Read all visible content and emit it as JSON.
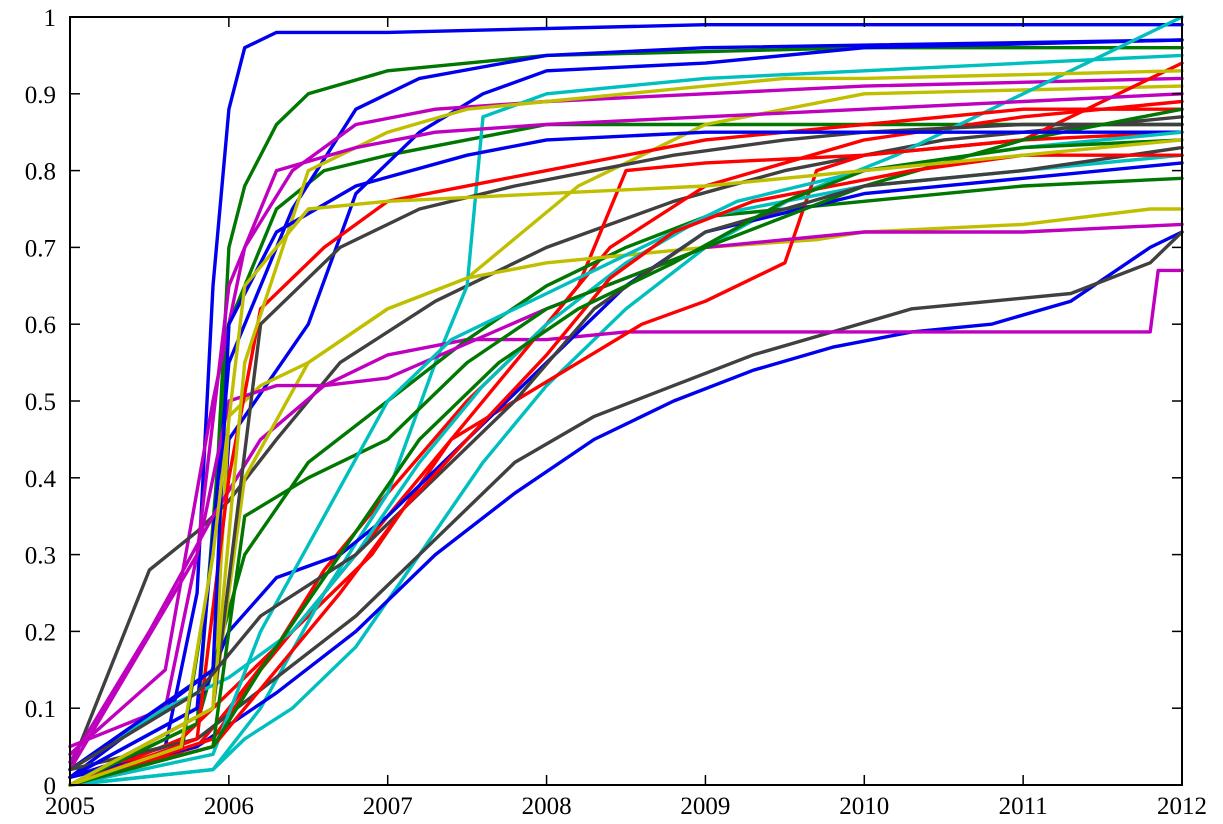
{
  "chart_data": {
    "type": "line",
    "title": "",
    "xlabel": "",
    "ylabel": "",
    "xlim": [
      2005,
      2012
    ],
    "ylim": [
      0,
      1
    ],
    "x_ticks": [
      2005,
      2006,
      2007,
      2008,
      2009,
      2010,
      2011,
      2012
    ],
    "y_ticks": [
      0,
      0.1,
      0.2,
      0.3,
      0.4,
      0.5,
      0.6,
      0.7,
      0.8,
      0.9,
      1
    ],
    "x_tick_labels": [
      "2005",
      "2006",
      "2007",
      "2008",
      "2009",
      "2010",
      "2011",
      "2012"
    ],
    "y_tick_labels": [
      "0",
      "0.1",
      "0.2",
      "0.3",
      "0.4",
      "0.5",
      "0.6",
      "0.7",
      "0.8",
      "0.9",
      "1"
    ],
    "grid": false,
    "legend": "none",
    "colors": {
      "blue": "#0000ee",
      "green": "#007700",
      "red": "#ff0000",
      "cyan": "#00bfbf",
      "magenta": "#bf00bf",
      "olive": "#bfbf00",
      "gray": "#404040"
    },
    "series": [
      {
        "color": "#0000ee",
        "x": [
          2005.0,
          2005.6,
          2005.8,
          2005.9,
          2006.0,
          2006.1,
          2006.3,
          2007.0,
          2009.0,
          2012.0
        ],
        "y": [
          0.01,
          0.05,
          0.25,
          0.65,
          0.88,
          0.96,
          0.98,
          0.98,
          0.99,
          0.99
        ]
      },
      {
        "color": "#007700",
        "x": [
          2005.0,
          2005.7,
          2005.9,
          2006.0,
          2006.1,
          2006.3,
          2006.5,
          2007.0,
          2008.0,
          2010.0,
          2012.0
        ],
        "y": [
          0.0,
          0.04,
          0.3,
          0.7,
          0.78,
          0.86,
          0.9,
          0.93,
          0.95,
          0.96,
          0.96
        ]
      },
      {
        "color": "#007700",
        "x": [
          2005.0,
          2005.8,
          2006.0,
          2006.3,
          2006.6,
          2007.0,
          2008.0,
          2012.0
        ],
        "y": [
          0.0,
          0.08,
          0.6,
          0.75,
          0.8,
          0.82,
          0.86,
          0.86
        ]
      },
      {
        "color": "#0000ee",
        "x": [
          2005.0,
          2005.8,
          2006.0,
          2006.4,
          2006.8,
          2007.2,
          2008.0,
          2009.0,
          2012.0
        ],
        "y": [
          0.01,
          0.1,
          0.55,
          0.75,
          0.88,
          0.92,
          0.95,
          0.96,
          0.97
        ]
      },
      {
        "color": "#0000ee",
        "x": [
          2005.0,
          2005.9,
          2006.0,
          2006.5,
          2006.8,
          2007.2,
          2007.6,
          2008.0,
          2009.0,
          2010.0,
          2012.0
        ],
        "y": [
          0.01,
          0.15,
          0.45,
          0.6,
          0.77,
          0.85,
          0.9,
          0.93,
          0.94,
          0.96,
          0.97
        ]
      },
      {
        "color": "#bf00bf",
        "x": [
          2005.0,
          2005.6,
          2005.9,
          2006.1,
          2006.4,
          2006.8,
          2007.3,
          2008.0,
          2009.0,
          2010.0,
          2012.0
        ],
        "y": [
          0.04,
          0.15,
          0.5,
          0.7,
          0.8,
          0.86,
          0.88,
          0.89,
          0.9,
          0.91,
          0.92
        ]
      },
      {
        "color": "#bfbf00",
        "x": [
          2005.0,
          2005.9,
          2006.0,
          2006.2,
          2006.5,
          2007.0,
          2007.5,
          2008.2,
          2009.0,
          2010.0,
          2012.0
        ],
        "y": [
          0.0,
          0.1,
          0.48,
          0.52,
          0.55,
          0.62,
          0.66,
          0.78,
          0.86,
          0.9,
          0.91
        ]
      },
      {
        "color": "#404040",
        "x": [
          2005.0,
          2005.5,
          2005.8,
          2006.0,
          2006.3,
          2006.7,
          2007.3,
          2008.0,
          2008.8,
          2009.5,
          2010.5,
          2011.5,
          2012.0
        ],
        "y": [
          0.02,
          0.28,
          0.33,
          0.37,
          0.45,
          0.55,
          0.63,
          0.7,
          0.76,
          0.8,
          0.84,
          0.86,
          0.87
        ]
      },
      {
        "color": "#ff0000",
        "x": [
          2005.0,
          2005.8,
          2006.0,
          2006.3,
          2006.6,
          2007.0,
          2007.5,
          2008.0,
          2008.4,
          2009.0,
          2010.0,
          2011.0,
          2012.0
        ],
        "y": [
          0.0,
          0.05,
          0.1,
          0.18,
          0.28,
          0.38,
          0.5,
          0.6,
          0.7,
          0.78,
          0.84,
          0.87,
          0.89
        ]
      },
      {
        "color": "#ff0000",
        "x": [
          2005.0,
          2005.7,
          2006.0,
          2006.4,
          2006.9,
          2007.4,
          2007.8,
          2008.2,
          2008.5,
          2009.0,
          2010.0,
          2011.0,
          2012.0
        ],
        "y": [
          0.0,
          0.06,
          0.12,
          0.2,
          0.3,
          0.45,
          0.55,
          0.65,
          0.8,
          0.81,
          0.82,
          0.84,
          0.94
        ]
      },
      {
        "color": "#00bfbf",
        "x": [
          2005.0,
          2005.9,
          2006.1,
          2006.4,
          2006.8,
          2007.2,
          2007.6,
          2008.0,
          2008.5,
          2009.0,
          2009.6,
          2010.2,
          2011.0,
          2012.0
        ],
        "y": [
          0.0,
          0.02,
          0.06,
          0.1,
          0.18,
          0.3,
          0.42,
          0.52,
          0.62,
          0.7,
          0.77,
          0.82,
          0.9,
          1.0
        ]
      },
      {
        "color": "#00bfbf",
        "x": [
          2005.0,
          2005.9,
          2006.2,
          2006.6,
          2007.0,
          2007.3,
          2007.5,
          2007.6,
          2008.0,
          2009.0,
          2010.0,
          2012.0
        ],
        "y": [
          0.0,
          0.02,
          0.1,
          0.25,
          0.38,
          0.55,
          0.65,
          0.87,
          0.9,
          0.92,
          0.93,
          0.95
        ]
      },
      {
        "color": "#0000ee",
        "x": [
          2005.0,
          2005.8,
          2006.3,
          2006.8,
          2007.3,
          2007.8,
          2008.3,
          2008.8,
          2009.3,
          2009.8,
          2010.3,
          2010.8,
          2011.3,
          2011.8,
          2012.0
        ],
        "y": [
          0.01,
          0.05,
          0.12,
          0.2,
          0.3,
          0.38,
          0.45,
          0.5,
          0.54,
          0.57,
          0.59,
          0.6,
          0.63,
          0.7,
          0.72
        ]
      },
      {
        "color": "#404040",
        "x": [
          2005.0,
          2005.8,
          2006.3,
          2006.8,
          2007.3,
          2007.8,
          2008.3,
          2008.8,
          2009.3,
          2009.8,
          2010.3,
          2010.8,
          2011.3,
          2011.8,
          2012.0
        ],
        "y": [
          0.02,
          0.06,
          0.14,
          0.22,
          0.32,
          0.42,
          0.48,
          0.52,
          0.56,
          0.59,
          0.62,
          0.63,
          0.64,
          0.68,
          0.72
        ]
      },
      {
        "color": "#bf00bf",
        "x": [
          2005.0,
          2005.5,
          2005.9,
          2006.2,
          2006.6,
          2007.0,
          2007.5,
          2008.0,
          2008.5,
          2009.0,
          2011.0,
          2011.8,
          2011.85,
          2012.0
        ],
        "y": [
          0.03,
          0.2,
          0.35,
          0.45,
          0.52,
          0.56,
          0.58,
          0.58,
          0.59,
          0.59,
          0.59,
          0.59,
          0.67,
          0.67
        ]
      },
      {
        "color": "#007700",
        "x": [
          2005.0,
          2005.8,
          2006.1,
          2006.5,
          2007.0,
          2007.5,
          2008.0,
          2008.5,
          2009.0,
          2010.0,
          2011.0,
          2012.0
        ],
        "y": [
          0.0,
          0.08,
          0.3,
          0.42,
          0.5,
          0.58,
          0.65,
          0.7,
          0.74,
          0.76,
          0.78,
          0.79
        ]
      },
      {
        "color": "#bfbf00",
        "x": [
          2005.0,
          2005.9,
          2006.1,
          2006.5,
          2007.0,
          2007.5,
          2008.0,
          2009.0,
          2009.7,
          2010.0,
          2011.0,
          2011.8,
          2012.0
        ],
        "y": [
          0.0,
          0.1,
          0.4,
          0.55,
          0.62,
          0.66,
          0.68,
          0.7,
          0.71,
          0.72,
          0.73,
          0.75,
          0.75
        ]
      },
      {
        "color": "#ff0000",
        "x": [
          2005.0,
          2005.9,
          2006.2,
          2006.6,
          2007.0,
          2007.4,
          2007.8,
          2008.2,
          2008.6,
          2009.0,
          2009.5,
          2009.7,
          2010.0,
          2011.0,
          2012.0
        ],
        "y": [
          0.0,
          0.06,
          0.15,
          0.25,
          0.35,
          0.45,
          0.5,
          0.55,
          0.6,
          0.63,
          0.68,
          0.8,
          0.82,
          0.84,
          0.85
        ]
      },
      {
        "color": "#bf00bf",
        "x": [
          2005.0,
          2005.6,
          2005.9,
          2006.0,
          2006.3,
          2006.6,
          2007.0,
          2008.0,
          2009.0,
          2010.0,
          2011.0,
          2012.0
        ],
        "y": [
          0.05,
          0.1,
          0.4,
          0.5,
          0.52,
          0.52,
          0.53,
          0.62,
          0.7,
          0.72,
          0.72,
          0.73
        ]
      },
      {
        "color": "#0000ee",
        "x": [
          2005.0,
          2005.8,
          2006.0,
          2006.3,
          2006.7,
          2007.0,
          2007.5,
          2008.0,
          2008.5,
          2009.0,
          2010.0,
          2011.0,
          2012.0
        ],
        "y": [
          0.01,
          0.1,
          0.2,
          0.27,
          0.3,
          0.35,
          0.45,
          0.55,
          0.65,
          0.72,
          0.77,
          0.79,
          0.81
        ]
      },
      {
        "color": "#00bfbf",
        "x": [
          2005.0,
          2005.6,
          2006.0,
          2006.4,
          2006.8,
          2007.2,
          2007.6,
          2008.0,
          2008.5,
          2009.0,
          2010.0,
          2011.0,
          2012.0
        ],
        "y": [
          0.02,
          0.1,
          0.14,
          0.2,
          0.3,
          0.42,
          0.52,
          0.6,
          0.68,
          0.74,
          0.78,
          0.8,
          0.82
        ]
      },
      {
        "color": "#404040",
        "x": [
          2005.0,
          2005.9,
          2006.2,
          2006.7,
          2007.2,
          2007.8,
          2008.3,
          2008.8,
          2009.5,
          2010.0,
          2011.0,
          2012.0
        ],
        "y": [
          0.0,
          0.1,
          0.6,
          0.7,
          0.75,
          0.78,
          0.8,
          0.82,
          0.84,
          0.85,
          0.86,
          0.86
        ]
      },
      {
        "color": "#ff0000",
        "x": [
          2005.0,
          2005.8,
          2006.0,
          2006.2,
          2006.6,
          2007.0,
          2008.0,
          2009.0,
          2010.0,
          2011.0,
          2012.0
        ],
        "y": [
          0.0,
          0.06,
          0.4,
          0.62,
          0.7,
          0.76,
          0.8,
          0.84,
          0.86,
          0.88,
          0.88
        ]
      },
      {
        "color": "#007700",
        "x": [
          2005.0,
          2005.9,
          2006.1,
          2006.5,
          2007.0,
          2007.5,
          2008.0,
          2009.0,
          2010.0,
          2011.0,
          2012.0
        ],
        "y": [
          0.0,
          0.05,
          0.35,
          0.4,
          0.45,
          0.55,
          0.62,
          0.7,
          0.78,
          0.84,
          0.88
        ]
      },
      {
        "color": "#bfbf00",
        "x": [
          2005.0,
          2005.9,
          2006.1,
          2006.5,
          2007.0,
          2007.5,
          2008.0,
          2008.5,
          2009.0,
          2009.5,
          2010.0,
          2012.0
        ],
        "y": [
          0.0,
          0.1,
          0.55,
          0.8,
          0.85,
          0.88,
          0.89,
          0.9,
          0.91,
          0.92,
          0.92,
          0.93
        ]
      },
      {
        "color": "#0000ee",
        "x": [
          2005.0,
          2005.9,
          2006.0,
          2006.3,
          2006.8,
          2007.5,
          2008.0,
          2009.0,
          2012.0
        ],
        "y": [
          0.02,
          0.15,
          0.6,
          0.72,
          0.78,
          0.82,
          0.84,
          0.85,
          0.85
        ]
      },
      {
        "color": "#bf00bf",
        "x": [
          2005.0,
          2005.8,
          2006.0,
          2006.3,
          2006.8,
          2007.3,
          2008.0,
          2009.0,
          2010.0,
          2011.0,
          2012.0
        ],
        "y": [
          0.02,
          0.3,
          0.65,
          0.8,
          0.83,
          0.85,
          0.86,
          0.87,
          0.88,
          0.89,
          0.9
        ]
      },
      {
        "color": "#00bfbf",
        "x": [
          2005.0,
          2005.9,
          2006.2,
          2006.6,
          2007.0,
          2007.4,
          2008.0,
          2008.6,
          2009.2,
          2010.0,
          2011.0,
          2012.0
        ],
        "y": [
          0.0,
          0.04,
          0.2,
          0.35,
          0.5,
          0.58,
          0.64,
          0.7,
          0.76,
          0.8,
          0.83,
          0.85
        ]
      },
      {
        "color": "#404040",
        "x": [
          2005.0,
          2005.8,
          2006.2,
          2006.8,
          2007.3,
          2007.8,
          2008.3,
          2009.0,
          2010.0,
          2011.0,
          2012.0
        ],
        "y": [
          0.02,
          0.12,
          0.22,
          0.3,
          0.4,
          0.5,
          0.62,
          0.72,
          0.78,
          0.8,
          0.83
        ]
      },
      {
        "color": "#ff0000",
        "x": [
          2005.0,
          2005.9,
          2006.3,
          2006.7,
          2007.1,
          2007.5,
          2008.0,
          2008.4,
          2008.8,
          2009.3,
          2009.8,
          2010.3,
          2011.0,
          2012.0
        ],
        "y": [
          0.0,
          0.05,
          0.15,
          0.25,
          0.36,
          0.45,
          0.56,
          0.66,
          0.72,
          0.76,
          0.78,
          0.8,
          0.82,
          0.82
        ]
      },
      {
        "color": "#007700",
        "x": [
          2005.0,
          2005.9,
          2006.2,
          2006.7,
          2007.2,
          2007.7,
          2008.2,
          2008.8,
          2009.5,
          2010.0,
          2011.0,
          2012.0
        ],
        "y": [
          0.0,
          0.05,
          0.15,
          0.3,
          0.45,
          0.55,
          0.62,
          0.68,
          0.76,
          0.8,
          0.83,
          0.84
        ]
      },
      {
        "color": "#bfbf00",
        "x": [
          2005.0,
          2005.7,
          2005.9,
          2006.1,
          2006.5,
          2007.0,
          2008.0,
          2009.0,
          2010.0,
          2011.0,
          2012.0
        ],
        "y": [
          0.0,
          0.05,
          0.3,
          0.65,
          0.75,
          0.76,
          0.77,
          0.78,
          0.8,
          0.82,
          0.84
        ]
      }
    ]
  }
}
